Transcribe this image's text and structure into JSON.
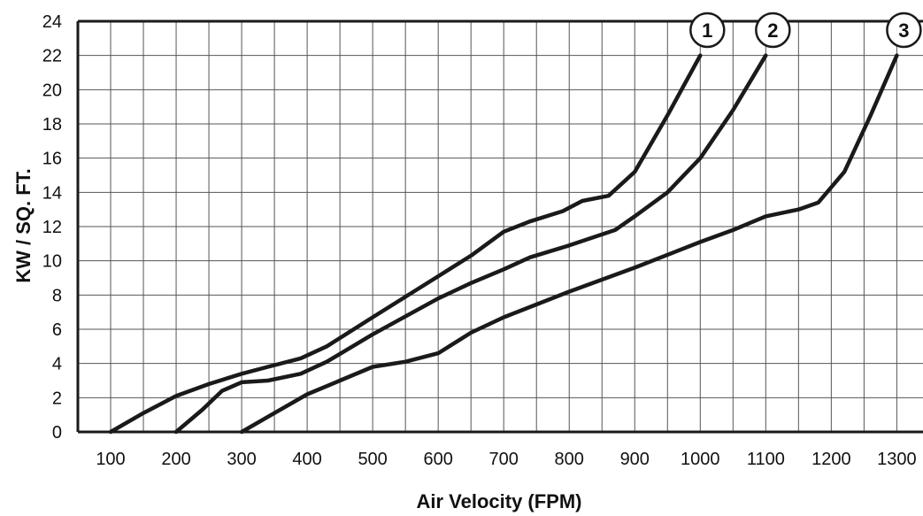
{
  "chart_data": {
    "type": "line",
    "title": "",
    "xlabel": "Air Velocity (FPM)",
    "ylabel": "KW / SQ. FT.",
    "xlim": [
      50,
      1340
    ],
    "ylim": [
      0,
      24
    ],
    "x_ticks": [
      100,
      200,
      300,
      400,
      500,
      600,
      700,
      800,
      900,
      1000,
      1100,
      1200,
      1300
    ],
    "y_ticks": [
      0,
      2,
      4,
      6,
      8,
      10,
      12,
      14,
      16,
      18,
      20,
      22,
      24
    ],
    "grid": true,
    "line_color": "#1a1a1a",
    "series": [
      {
        "name": "1",
        "points": [
          [
            100,
            0
          ],
          [
            150,
            1.1
          ],
          [
            200,
            2.1
          ],
          [
            250,
            2.8
          ],
          [
            300,
            3.4
          ],
          [
            340,
            3.8
          ],
          [
            390,
            4.3
          ],
          [
            430,
            5.0
          ],
          [
            500,
            6.7
          ],
          [
            600,
            9.1
          ],
          [
            650,
            10.3
          ],
          [
            700,
            11.7
          ],
          [
            740,
            12.3
          ],
          [
            790,
            12.9
          ],
          [
            820,
            13.5
          ],
          [
            860,
            13.8
          ],
          [
            900,
            15.2
          ],
          [
            950,
            18.5
          ],
          [
            1000,
            22.0
          ]
        ]
      },
      {
        "name": "2",
        "points": [
          [
            200,
            0
          ],
          [
            240,
            1.3
          ],
          [
            270,
            2.4
          ],
          [
            300,
            2.9
          ],
          [
            340,
            3.0
          ],
          [
            390,
            3.4
          ],
          [
            430,
            4.1
          ],
          [
            500,
            5.7
          ],
          [
            600,
            7.8
          ],
          [
            650,
            8.7
          ],
          [
            700,
            9.5
          ],
          [
            740,
            10.2
          ],
          [
            800,
            10.9
          ],
          [
            870,
            11.8
          ],
          [
            900,
            12.6
          ],
          [
            950,
            14.0
          ],
          [
            1000,
            16.0
          ],
          [
            1050,
            18.8
          ],
          [
            1100,
            22.0
          ]
        ]
      },
      {
        "name": "3",
        "points": [
          [
            300,
            0
          ],
          [
            350,
            1.1
          ],
          [
            400,
            2.2
          ],
          [
            450,
            3.0
          ],
          [
            500,
            3.8
          ],
          [
            550,
            4.1
          ],
          [
            600,
            4.6
          ],
          [
            650,
            5.8
          ],
          [
            700,
            6.7
          ],
          [
            800,
            8.2
          ],
          [
            900,
            9.6
          ],
          [
            1000,
            11.1
          ],
          [
            1050,
            11.8
          ],
          [
            1100,
            12.6
          ],
          [
            1150,
            13.0
          ],
          [
            1180,
            13.4
          ],
          [
            1220,
            15.2
          ],
          [
            1260,
            18.5
          ],
          [
            1300,
            22.0
          ]
        ]
      }
    ]
  }
}
